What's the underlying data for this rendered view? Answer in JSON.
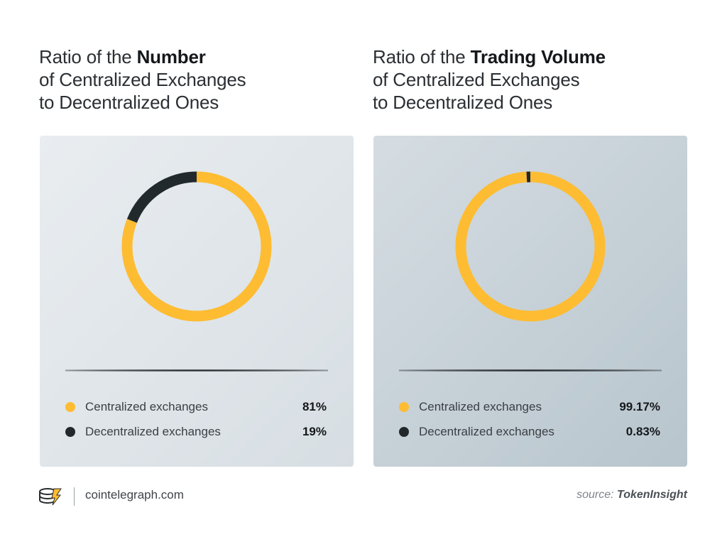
{
  "colors": {
    "centralized": "#fdbc32",
    "decentralized": "#22292d"
  },
  "left": {
    "title_pre": "Ratio of the ",
    "title_bold": "Number",
    "title_line2": "of Centralized Exchanges",
    "title_line3": "to Decentralized Ones"
  },
  "right": {
    "title_pre": "Ratio of the ",
    "title_bold": "Trading Volume",
    "title_line2": "of Centralized Exchanges",
    "title_line3": "to Decentralized Ones"
  },
  "chart_data": [
    {
      "type": "pie",
      "donut": true,
      "title": "Ratio of the Number of Centralized Exchanges to Decentralized Ones",
      "categories": [
        "Centralized exchanges",
        "Decentralized exchanges"
      ],
      "values": [
        81,
        19
      ],
      "labels": [
        "81%",
        "19%"
      ]
    },
    {
      "type": "pie",
      "donut": true,
      "title": "Ratio of the Trading Volume of Centralized Exchanges to Decentralized Ones",
      "categories": [
        "Centralized exchanges",
        "Decentralized exchanges"
      ],
      "values": [
        99.17,
        0.83
      ],
      "labels": [
        "99.17%",
        "0.83%"
      ]
    }
  ],
  "footer": {
    "site": "cointelegraph.com",
    "source_prefix": "source: ",
    "source_name": "TokenInsight",
    "logo_icon": "cointelegraph-logo-icon"
  }
}
